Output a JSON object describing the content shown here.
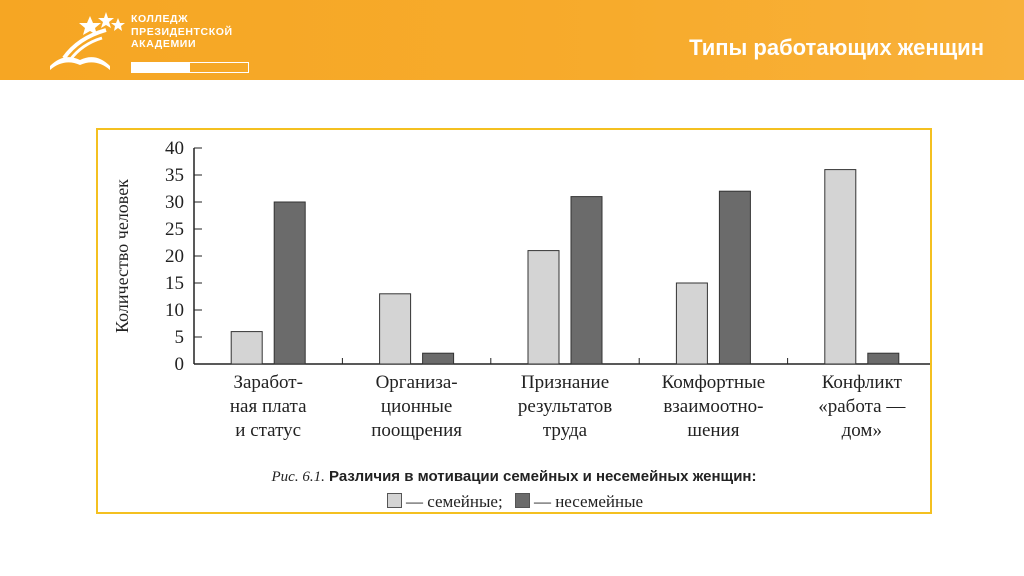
{
  "header": {
    "logo_lines": [
      "КОЛЛЕДЖ",
      "ПРЕЗИДЕНТСКОЙ",
      "АКАДЕМИИ"
    ],
    "logo_bar": [
      "",
      ""
    ],
    "title": "Типы работающих женщин",
    "background": "#f6a623"
  },
  "caption": {
    "prefix": "Рис. 6.1.",
    "text": "Различия в мотивации семейных и несемейных женщин:"
  },
  "legend": {
    "family": "— семейные;",
    "nonfamily": "— несемейные"
  },
  "chart_data": {
    "type": "bar",
    "categories": [
      [
        "Заработ-",
        "ная плата",
        "и статус"
      ],
      [
        "Организа-",
        "ционные",
        "поощрения"
      ],
      [
        "Признание",
        "результатов",
        "труда"
      ],
      [
        "Комфортные",
        "взаимоотно-",
        "шения"
      ],
      [
        "Конфликт",
        "«работа —",
        "дом»"
      ]
    ],
    "series": [
      {
        "name": "семейные",
        "values": [
          6,
          13,
          21,
          15,
          36
        ],
        "color": "#d4d4d4"
      },
      {
        "name": "несемейные",
        "values": [
          30,
          2,
          31,
          32,
          2
        ],
        "color": "#6b6b6b"
      }
    ],
    "ylabel": "Количество человек",
    "ylim": [
      0,
      40
    ],
    "yticks": [
      "0",
      "5",
      "10",
      "15",
      "20",
      "25",
      "30",
      "35",
      "40"
    ],
    "grid": false,
    "legend_position": "bottom"
  }
}
